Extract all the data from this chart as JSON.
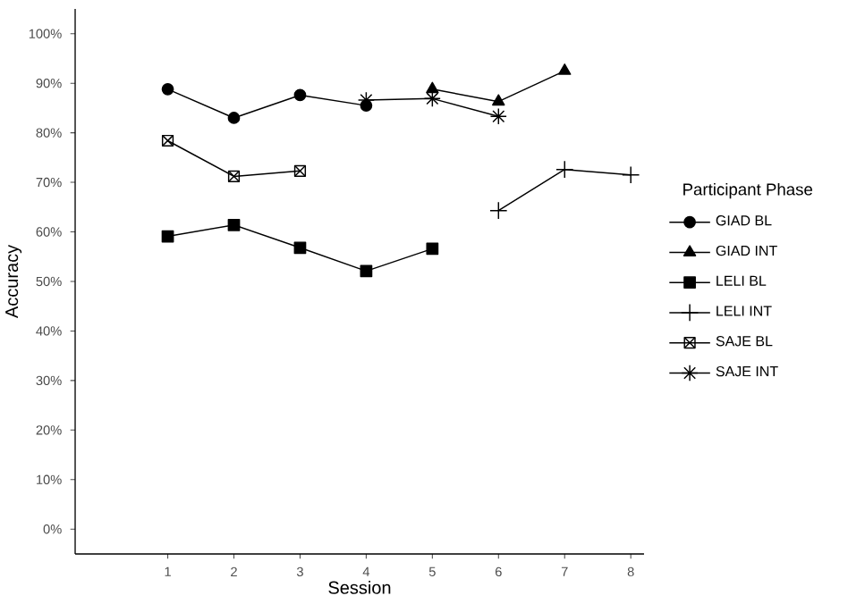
{
  "chart_data": {
    "type": "line",
    "xlabel": "Session",
    "ylabel": "Accuracy",
    "legend_title": "Participant Phase",
    "legend": "right",
    "grid": false,
    "line_style": "solid",
    "xlim": [
      -0.4,
      8.2
    ],
    "xticks": [
      1,
      2,
      3,
      4,
      5,
      6,
      7,
      8
    ],
    "ylim": [
      -5,
      105
    ],
    "yticks": [
      {
        "value": 0,
        "label": "0%"
      },
      {
        "value": 10,
        "label": "10%"
      },
      {
        "value": 20,
        "label": "20%"
      },
      {
        "value": 30,
        "label": "30%"
      },
      {
        "value": 40,
        "label": "40%"
      },
      {
        "value": 50,
        "label": "50%"
      },
      {
        "value": 60,
        "label": "60%"
      },
      {
        "value": 70,
        "label": "70%"
      },
      {
        "value": 80,
        "label": "80%"
      },
      {
        "value": 90,
        "label": "90%"
      },
      {
        "value": 100,
        "label": "100%"
      }
    ],
    "series": [
      {
        "name": "GIAD BL",
        "color": "#000000",
        "marker": "circle",
        "x": [
          1,
          2,
          3,
          4
        ],
        "values": [
          88.8,
          83.0,
          87.6,
          85.5
        ]
      },
      {
        "name": "GIAD INT",
        "color": "#000000",
        "marker": "triangle",
        "x": [
          5,
          6,
          7
        ],
        "values": [
          88.8,
          86.3,
          92.5
        ]
      },
      {
        "name": "LELI BL",
        "color": "#000000",
        "marker": "square",
        "x": [
          1,
          2,
          3,
          4,
          5
        ],
        "values": [
          59.1,
          61.4,
          56.8,
          52.1,
          56.6
        ]
      },
      {
        "name": "LELI INT",
        "color": "#000000",
        "marker": "cross",
        "x": [
          6,
          7,
          8
        ],
        "values": [
          64.3,
          72.6,
          71.5
        ]
      },
      {
        "name": "SAJE BL",
        "color": "#000000",
        "marker": "square",
        "x": [
          1,
          2,
          3
        ],
        "values": [
          78.4,
          71.2,
          72.3
        ]
      },
      {
        "name": "SAJE INT",
        "color": "#000000",
        "marker": "cross",
        "x": [
          4,
          5,
          6
        ],
        "values": [
          86.6,
          86.9,
          83.3
        ]
      }
    ]
  }
}
